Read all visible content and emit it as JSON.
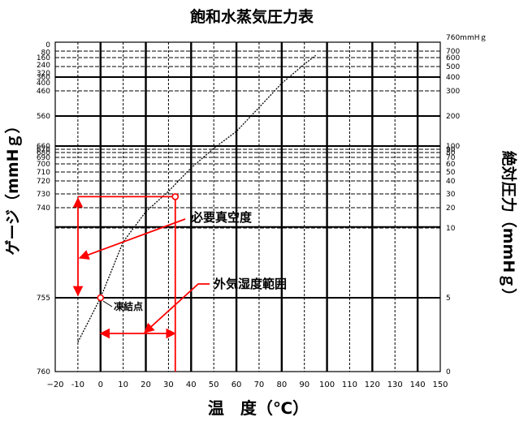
{
  "chart_data": {
    "type": "line",
    "title": "飽和水蒸気圧力表",
    "xlabel": "温　度（℃）",
    "ylabel_left": "ゲージ（mmHｇ）",
    "ylabel_right": "絶対圧力（mmHｇ）",
    "xlim": [
      -20,
      150
    ],
    "x_ticks": [
      {
        "v": -20,
        "label": "−20"
      },
      {
        "v": -10,
        "label": "-10"
      },
      {
        "v": 0,
        "label": "0"
      },
      {
        "v": 10,
        "label": "10"
      },
      {
        "v": 20,
        "label": "20"
      },
      {
        "v": 30,
        "label": "30"
      },
      {
        "v": 40,
        "label": "40"
      },
      {
        "v": 50,
        "label": "50"
      },
      {
        "v": 60,
        "label": "60"
      },
      {
        "v": 70,
        "label": "70"
      },
      {
        "v": 80,
        "label": "80"
      },
      {
        "v": 90,
        "label": "90"
      },
      {
        "v": 100,
        "label": "100"
      },
      {
        "v": 110,
        "label": "110"
      },
      {
        "v": 120,
        "label": "120"
      },
      {
        "v": 130,
        "label": "130"
      },
      {
        "v": 140,
        "label": "140"
      },
      {
        "v": 150,
        "label": "150"
      }
    ],
    "left_ticks": [
      {
        "v": 0,
        "label": "0"
      },
      {
        "v": 80,
        "label": "80"
      },
      {
        "v": 160,
        "label": "160"
      },
      {
        "v": 240,
        "label": "240"
      },
      {
        "v": 320,
        "label": "320"
      },
      {
        "v": 360,
        "label": "360"
      },
      {
        "v": 400,
        "label": "400"
      },
      {
        "v": 460,
        "label": "460"
      },
      {
        "v": 560,
        "label": "560"
      },
      {
        "v": 660,
        "label": "660"
      },
      {
        "v": 670,
        "label": "670"
      },
      {
        "v": 680,
        "label": "680"
      },
      {
        "v": 690,
        "label": "690"
      },
      {
        "v": 700,
        "label": "700"
      },
      {
        "v": 710,
        "label": "710"
      },
      {
        "v": 720,
        "label": "720"
      },
      {
        "v": 730,
        "label": "730"
      },
      {
        "v": 740,
        "label": "740"
      },
      {
        "v": 755,
        "label": "755"
      },
      {
        "v": 760,
        "label": "760"
      }
    ],
    "right_ticks": [
      {
        "v": 760,
        "label": "760mmHｇ"
      },
      {
        "v": 700,
        "label": "700"
      },
      {
        "v": 600,
        "label": "600"
      },
      {
        "v": 500,
        "label": "500"
      },
      {
        "v": 400,
        "label": "400"
      },
      {
        "v": 300,
        "label": "300"
      },
      {
        "v": 200,
        "label": "200"
      },
      {
        "v": 100,
        "label": "100"
      },
      {
        "v": 90,
        "label": "90"
      },
      {
        "v": 80,
        "label": "80"
      },
      {
        "v": 70,
        "label": "70"
      },
      {
        "v": 60,
        "label": "60"
      },
      {
        "v": 50,
        "label": "50"
      },
      {
        "v": 40,
        "label": "40"
      },
      {
        "v": 30,
        "label": "30"
      },
      {
        "v": 20,
        "label": "20"
      },
      {
        "v": 10,
        "label": "10"
      },
      {
        "v": 5,
        "label": "5"
      },
      {
        "v": 0,
        "label": "0"
      }
    ],
    "right_axis_relation": "absolute_mmHg = 760 - gauge_mmHg",
    "series": [
      {
        "x": [
          -10,
          0,
          10,
          20,
          30,
          40,
          50,
          60,
          70,
          80,
          90,
          95
        ],
        "y_absolute_mmHg": [
          2,
          5,
          9,
          18,
          32,
          55,
          93,
          149,
          234,
          355,
          526,
          634
        ]
      }
    ],
    "markers": [
      {
        "x": 0,
        "y_absolute_mmHg": 5
      },
      {
        "x": 33,
        "y_absolute_mmHg": 28
      }
    ],
    "annotations": [
      {
        "text": "必要真空度",
        "x": 33,
        "y_absolute_mmHg": 28
      },
      {
        "text": "外気湿度範囲",
        "x_range": [
          0,
          33
        ]
      },
      {
        "text": "凍結点",
        "x": 0,
        "y_absolute_mmHg": 5
      }
    ],
    "grid": true,
    "colors": {
      "curve": "#000000",
      "grid": "#000000",
      "annotation": "#ff0000"
    }
  }
}
